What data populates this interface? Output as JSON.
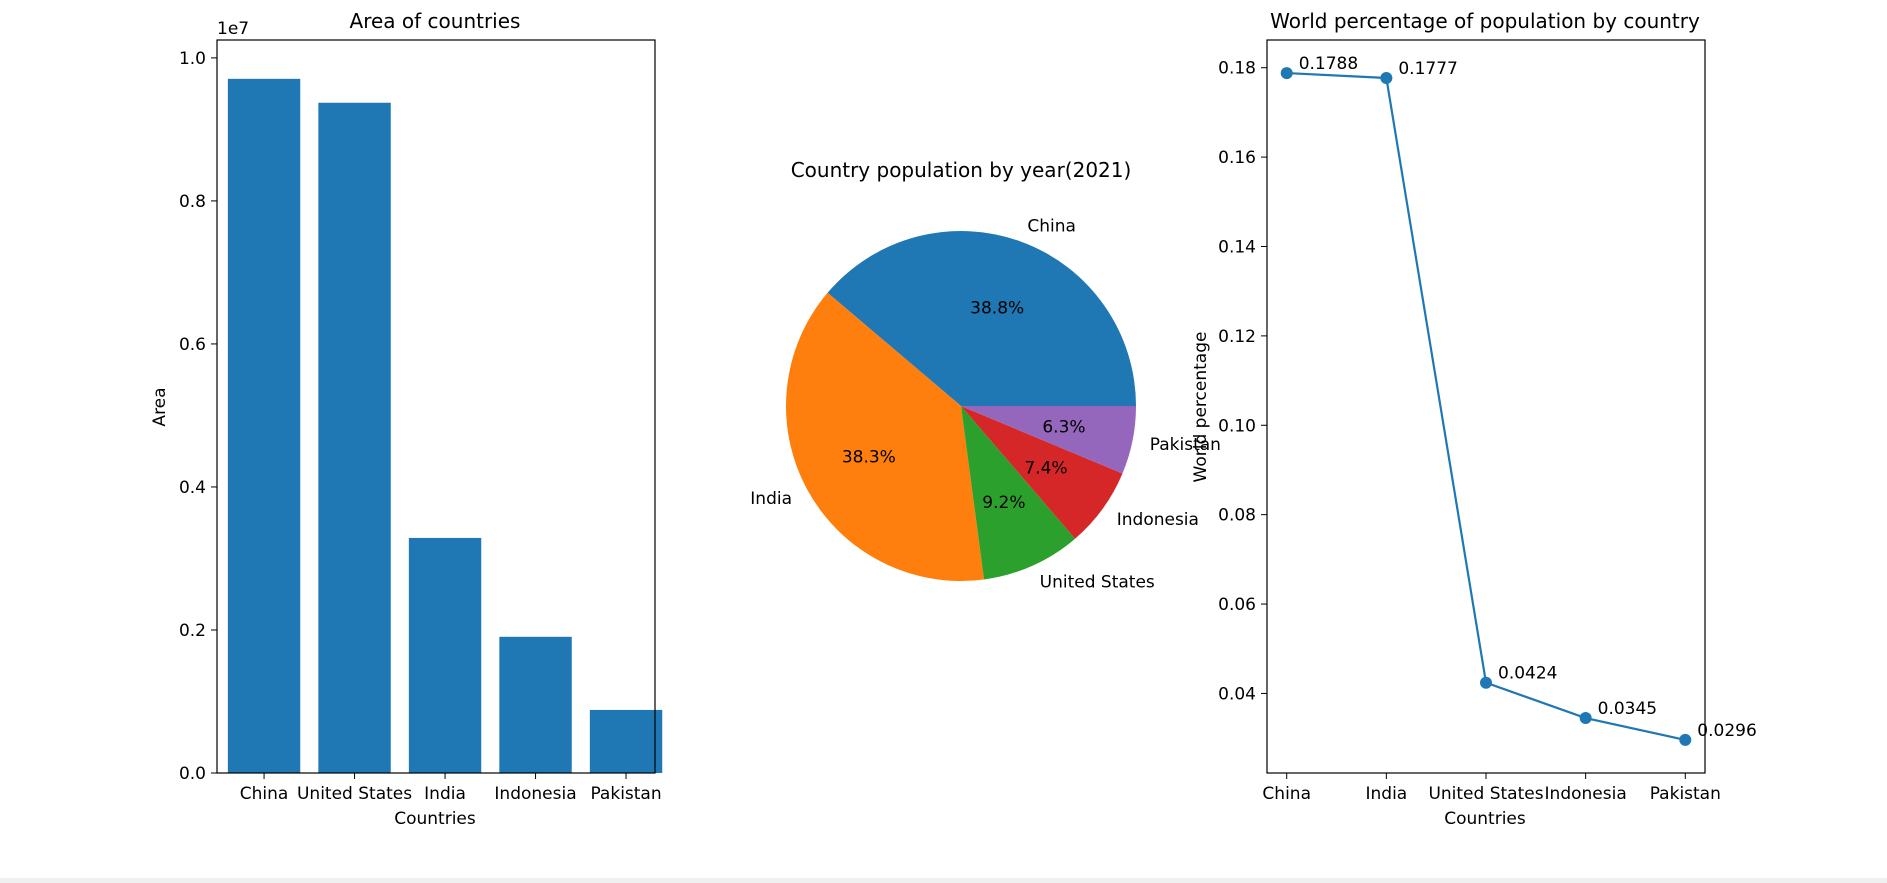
{
  "chart_data": [
    {
      "type": "bar",
      "title": "Area of countries",
      "xlabel": "Countries",
      "ylabel": "Area",
      "offset_text": "1e7",
      "categories": [
        "China",
        "United States",
        "India",
        "Indonesia",
        "Pakistan"
      ],
      "values": [
        9706961,
        9372610,
        3287263,
        1904569,
        881913
      ],
      "ylim": [
        0,
        10250000
      ],
      "yticks": [
        0,
        2000000,
        4000000,
        6000000,
        8000000,
        10000000
      ],
      "ytick_labels": [
        "0.0",
        "0.2",
        "0.4",
        "0.6",
        "0.8",
        "1.0"
      ],
      "color": "#1f77b4",
      "grid": false
    },
    {
      "type": "pie",
      "title": "Country population by year(2021)",
      "categories": [
        "China",
        "India",
        "United States",
        "Indonesia",
        "Pakistan"
      ],
      "values": [
        38.8,
        38.3,
        9.2,
        7.4,
        6.3
      ],
      "pct_labels": [
        "38.8%",
        "38.3%",
        "9.2%",
        "7.4%",
        "6.3%"
      ],
      "colors": [
        "#1f77b4",
        "#ff7f0e",
        "#2ca02c",
        "#d62728",
        "#9467bd"
      ]
    },
    {
      "type": "line",
      "title": "World percentage of population by country",
      "xlabel": "Countries",
      "ylabel": "World percentage",
      "categories": [
        "China",
        "India",
        "United States",
        "Indonesia",
        "Pakistan"
      ],
      "values": [
        0.1788,
        0.1777,
        0.0424,
        0.0345,
        0.0296
      ],
      "point_labels": [
        "0.1788",
        "0.1777",
        "0.0424",
        "0.0345",
        "0.0296"
      ],
      "ylim": [
        0.0222,
        0.1862
      ],
      "yticks": [
        0.04,
        0.06,
        0.08,
        0.1,
        0.12,
        0.14,
        0.16,
        0.18
      ],
      "ytick_labels": [
        "0.04",
        "0.06",
        "0.08",
        "0.10",
        "0.12",
        "0.14",
        "0.16",
        "0.18"
      ],
      "color": "#1f77b4",
      "marker": "circle",
      "grid": false
    }
  ]
}
